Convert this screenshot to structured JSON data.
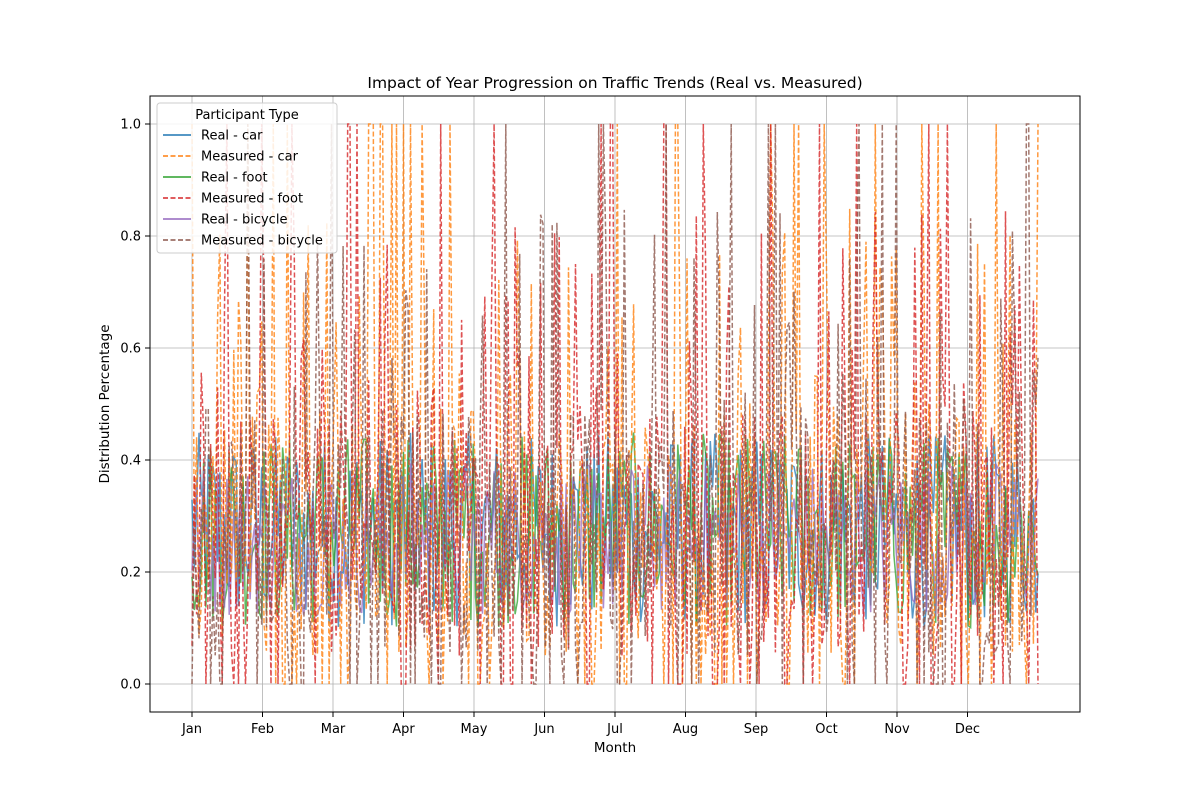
{
  "chart_data": {
    "type": "line",
    "title": "Impact of Year Progression on Traffic Trends (Real vs. Measured)",
    "xlabel": "Month",
    "ylabel": "Distribution Percentage",
    "categories": [
      "Jan",
      "Feb",
      "Mar",
      "Apr",
      "May",
      "Jun",
      "Jul",
      "Aug",
      "Sep",
      "Oct",
      "Nov",
      "Dec"
    ],
    "ylim": [
      -0.05,
      1.05
    ],
    "yticks": [
      "0.0",
      "0.2",
      "0.4",
      "0.6",
      "0.8",
      "1.0"
    ],
    "grid": true,
    "legend": {
      "title": "Participant Type",
      "placement": "upper-left"
    },
    "series": [
      {
        "name": "Real - car",
        "style": "solid",
        "color": "#1f77b4",
        "typical_range": [
          0.1,
          0.45
        ]
      },
      {
        "name": "Measured - car",
        "style": "dashed",
        "color": "#ff7f0e",
        "typical_range": [
          0.0,
          1.0
        ]
      },
      {
        "name": "Real - foot",
        "style": "solid",
        "color": "#2ca02c",
        "typical_range": [
          0.1,
          0.45
        ]
      },
      {
        "name": "Measured - foot",
        "style": "dashed",
        "color": "#d62728",
        "typical_range": [
          0.0,
          1.0
        ]
      },
      {
        "name": "Real - bicycle",
        "style": "solid",
        "color": "#9467bd",
        "typical_range": [
          0.12,
          0.4
        ]
      },
      {
        "name": "Measured - bicycle",
        "style": "dashed",
        "color": "#8c564b",
        "typical_range": [
          0.0,
          1.0
        ]
      }
    ]
  }
}
